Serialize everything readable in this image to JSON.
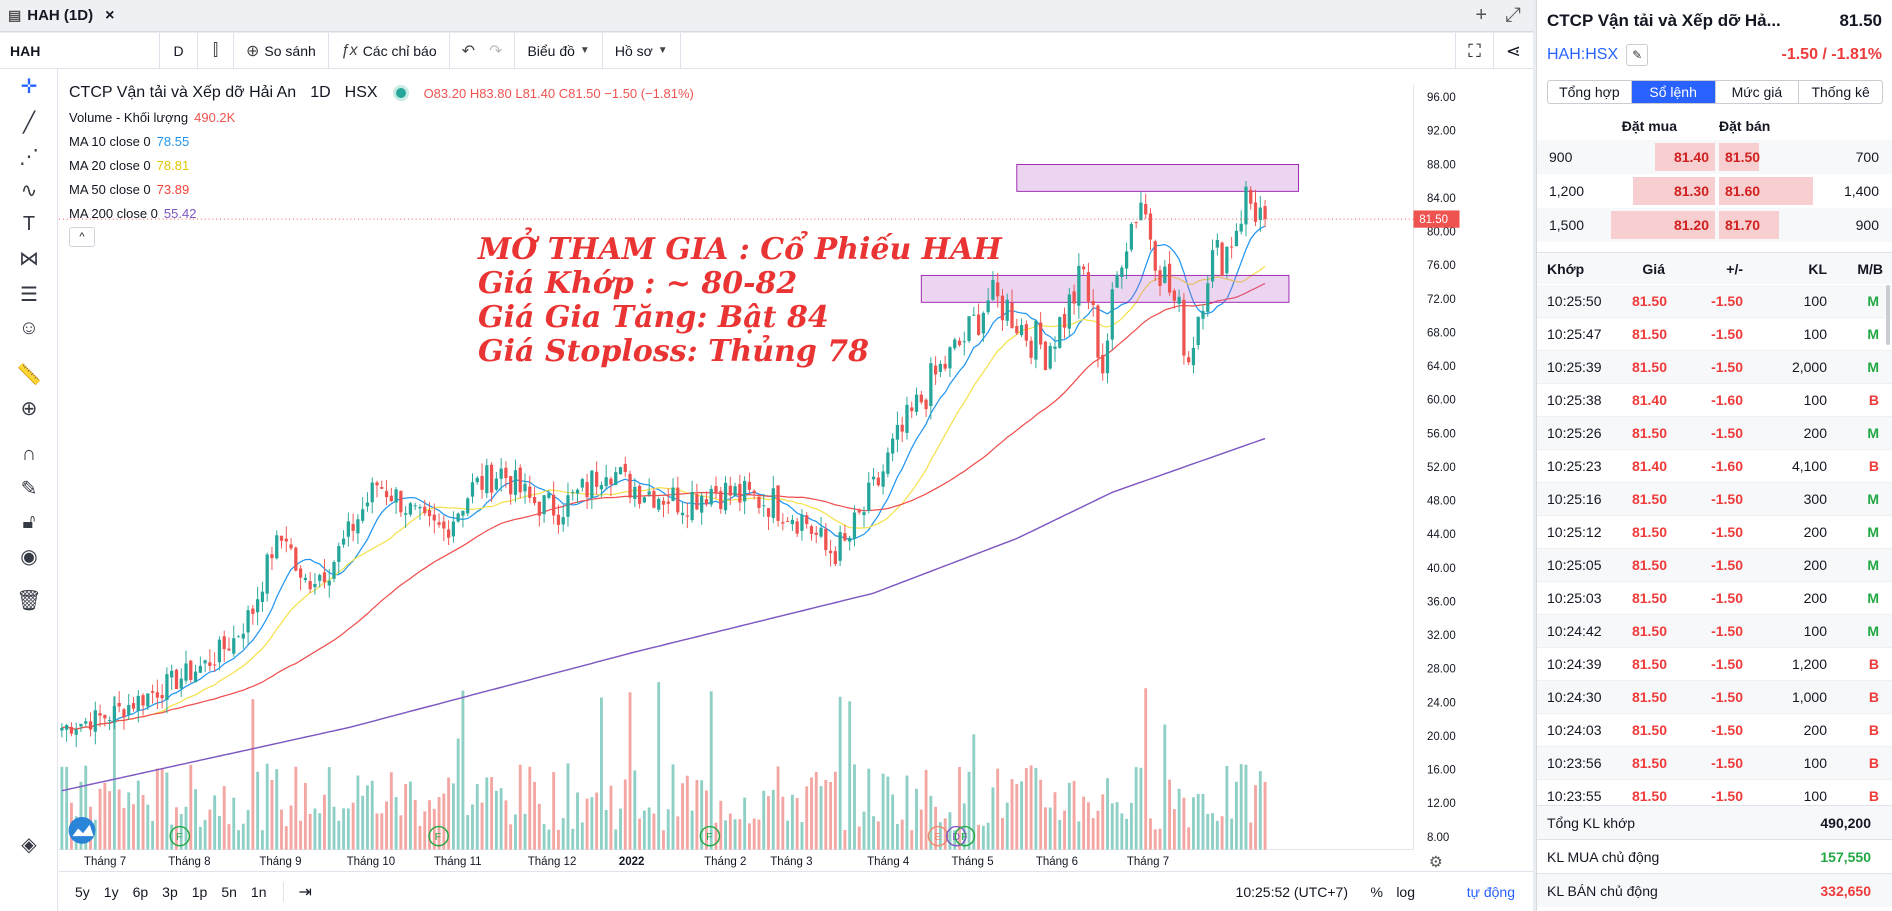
{
  "window": {
    "title": "HAH (1D)",
    "close": "×",
    "plus": "+",
    "expand": "⤢"
  },
  "toolbar": {
    "symbol": "HAH",
    "interval": "D",
    "compare": "So sánh",
    "indicators": "Các chỉ báo",
    "chart_type": "Biểu đồ",
    "profile": "Hồ sơ"
  },
  "legend": {
    "title": "CTCP Vận tải và Xếp dỡ Hải An",
    "interval": "1D",
    "exchange": "HSX",
    "ohlc": "O83.20 H83.80 L81.40 C81.50 −1.50 (−1.81%)",
    "volume_label": "Volume - Khối lượng",
    "volume_value": "490.2K",
    "ma": [
      {
        "label": "MA 10 close 0",
        "value": "78.55",
        "color": "#2196f3"
      },
      {
        "label": "MA 20 close 0",
        "value": "78.81",
        "color": "#ffeb3b"
      },
      {
        "label": "MA 50 close 0",
        "value": "73.89",
        "color": "#f44336"
      },
      {
        "label": "MA 200 close 0",
        "value": "55.42",
        "color": "#7e57c2"
      }
    ]
  },
  "annotation": [
    "MỞ THAM GIA : Cổ Phiếu HAH",
    "Giá Khớp : ~ 80-82",
    "Giá Gia Tăng: Bật 84",
    "Giá Stoploss: Thủng 78"
  ],
  "chart_data": {
    "type": "candlestick",
    "price_axis": [
      "96.00",
      "92.00",
      "88.00",
      "84.00",
      "80.00",
      "76.00",
      "72.00",
      "68.00",
      "64.00",
      "60.00",
      "56.00",
      "52.00",
      "48.00",
      "44.00",
      "40.00",
      "36.00",
      "32.00",
      "28.00",
      "24.00",
      "20.00",
      "16.00",
      "12.00",
      "8.00"
    ],
    "ylim": [
      6.5,
      97.5
    ],
    "last_price": "81.50",
    "x_labels": [
      "Tháng 7",
      "Tháng 8",
      "Tháng 9",
      "Tháng 10",
      "Tháng 11",
      "Tháng 12",
      "2022",
      "Tháng 2",
      "Tháng 3",
      "Tháng 4",
      "Tháng 5",
      "Tháng 6",
      "Tháng 7"
    ],
    "price_waypoints": [
      [
        0,
        21
      ],
      [
        10,
        22.5
      ],
      [
        20,
        25.5
      ],
      [
        30,
        28.5
      ],
      [
        36,
        31.5
      ],
      [
        40,
        35
      ],
      [
        44,
        42
      ],
      [
        47,
        44
      ],
      [
        50,
        38
      ],
      [
        56,
        40
      ],
      [
        60,
        44
      ],
      [
        66,
        50
      ],
      [
        70,
        48.5
      ],
      [
        76,
        45
      ],
      [
        80,
        44.5
      ],
      [
        86,
        49.5
      ],
      [
        92,
        51.5
      ],
      [
        98,
        48
      ],
      [
        104,
        47
      ],
      [
        110,
        49.5
      ],
      [
        114,
        52.5
      ],
      [
        118,
        50
      ],
      [
        124,
        49
      ],
      [
        130,
        48
      ],
      [
        136,
        49.5
      ],
      [
        142,
        48.5
      ],
      [
        148,
        48
      ],
      [
        152,
        47
      ],
      [
        156,
        45.5
      ],
      [
        160,
        42
      ],
      [
        164,
        42.5
      ],
      [
        170,
        49
      ],
      [
        174,
        54
      ],
      [
        178,
        58
      ],
      [
        182,
        62
      ],
      [
        186,
        65
      ],
      [
        190,
        68
      ],
      [
        194,
        72
      ],
      [
        198,
        71
      ],
      [
        202,
        68
      ],
      [
        206,
        66
      ],
      [
        210,
        70
      ],
      [
        214,
        75
      ],
      [
        218,
        64
      ],
      [
        222,
        78
      ],
      [
        226,
        84
      ],
      [
        230,
        76
      ],
      [
        234,
        70
      ],
      [
        236,
        65
      ],
      [
        240,
        76
      ],
      [
        244,
        78
      ],
      [
        248,
        84
      ],
      [
        252,
        81.5
      ]
    ],
    "ma200": [
      [
        0,
        13.5
      ],
      [
        60,
        21
      ],
      [
        120,
        30
      ],
      [
        170,
        37
      ],
      [
        200,
        43.5
      ],
      [
        220,
        49
      ],
      [
        252,
        55.4
      ]
    ],
    "volume_markers": [
      "F",
      "F",
      "F",
      "E",
      "D",
      "F"
    ],
    "zones": [
      {
        "top": 88,
        "bottom": 84.8,
        "from": 200,
        "to": 259
      },
      {
        "top": 74.8,
        "bottom": 71.6,
        "from": 180,
        "to": 257
      }
    ]
  },
  "timeframes": [
    "5y",
    "1y",
    "6p",
    "3p",
    "1p",
    "5n",
    "1n"
  ],
  "clock": "10:25:52 (UTC+7)",
  "pct_btn": "%",
  "log_btn": "log",
  "auto_btn": "tự động",
  "panel": {
    "name": "CTCP Vận tải và Xếp dỡ Hả...",
    "price": "81.50",
    "code": "HAH:HSX",
    "change": "-1.50 / -1.81%",
    "tabs": [
      "Tổng hợp",
      "Sổ lệnh",
      "Mức giá",
      "Thống kê"
    ],
    "book_header": {
      "bid": "Đặt mua",
      "ask": "Đặt bán"
    },
    "book": [
      {
        "bid_vol": "900",
        "bid": "81.40",
        "ask": "81.50",
        "ask_vol": "700"
      },
      {
        "bid_vol": "1,200",
        "bid": "81.30",
        "ask": "81.60",
        "ask_vol": "1,400"
      },
      {
        "bid_vol": "1,500",
        "bid": "81.20",
        "ask": "81.70",
        "ask_vol": "900"
      }
    ],
    "trade_header": {
      "time": "Khớp",
      "price": "Giá",
      "chg": "+/-",
      "vol": "KL",
      "side": "M/B"
    },
    "trades": [
      {
        "time": "10:25:50",
        "price": "81.50",
        "chg": "-1.50",
        "vol": "100",
        "side": "M"
      },
      {
        "time": "10:25:47",
        "price": "81.50",
        "chg": "-1.50",
        "vol": "100",
        "side": "M"
      },
      {
        "time": "10:25:39",
        "price": "81.50",
        "chg": "-1.50",
        "vol": "2,000",
        "side": "M"
      },
      {
        "time": "10:25:38",
        "price": "81.40",
        "chg": "-1.60",
        "vol": "100",
        "side": "B"
      },
      {
        "time": "10:25:26",
        "price": "81.50",
        "chg": "-1.50",
        "vol": "200",
        "side": "M"
      },
      {
        "time": "10:25:23",
        "price": "81.40",
        "chg": "-1.60",
        "vol": "4,100",
        "side": "B"
      },
      {
        "time": "10:25:16",
        "price": "81.50",
        "chg": "-1.50",
        "vol": "300",
        "side": "M"
      },
      {
        "time": "10:25:12",
        "price": "81.50",
        "chg": "-1.50",
        "vol": "200",
        "side": "M"
      },
      {
        "time": "10:25:05",
        "price": "81.50",
        "chg": "-1.50",
        "vol": "200",
        "side": "M"
      },
      {
        "time": "10:25:03",
        "price": "81.50",
        "chg": "-1.50",
        "vol": "200",
        "side": "M"
      },
      {
        "time": "10:24:42",
        "price": "81.50",
        "chg": "-1.50",
        "vol": "100",
        "side": "M"
      },
      {
        "time": "10:24:39",
        "price": "81.50",
        "chg": "-1.50",
        "vol": "1,200",
        "side": "B"
      },
      {
        "time": "10:24:30",
        "price": "81.50",
        "chg": "-1.50",
        "vol": "1,000",
        "side": "B"
      },
      {
        "time": "10:24:03",
        "price": "81.50",
        "chg": "-1.50",
        "vol": "200",
        "side": "B"
      },
      {
        "time": "10:23:56",
        "price": "81.50",
        "chg": "-1.50",
        "vol": "100",
        "side": "B"
      },
      {
        "time": "10:23:55",
        "price": "81.50",
        "chg": "-1.50",
        "vol": "100",
        "side": "B"
      }
    ],
    "summary": [
      {
        "label": "Tổng KL khớp",
        "value": "490,200",
        "color": "#131722"
      },
      {
        "label": "KL MUA chủ động",
        "value": "157,550",
        "color": "#22a843"
      },
      {
        "label": "KL BÁN chủ động",
        "value": "332,650",
        "color": "#ef3a3a"
      }
    ]
  }
}
